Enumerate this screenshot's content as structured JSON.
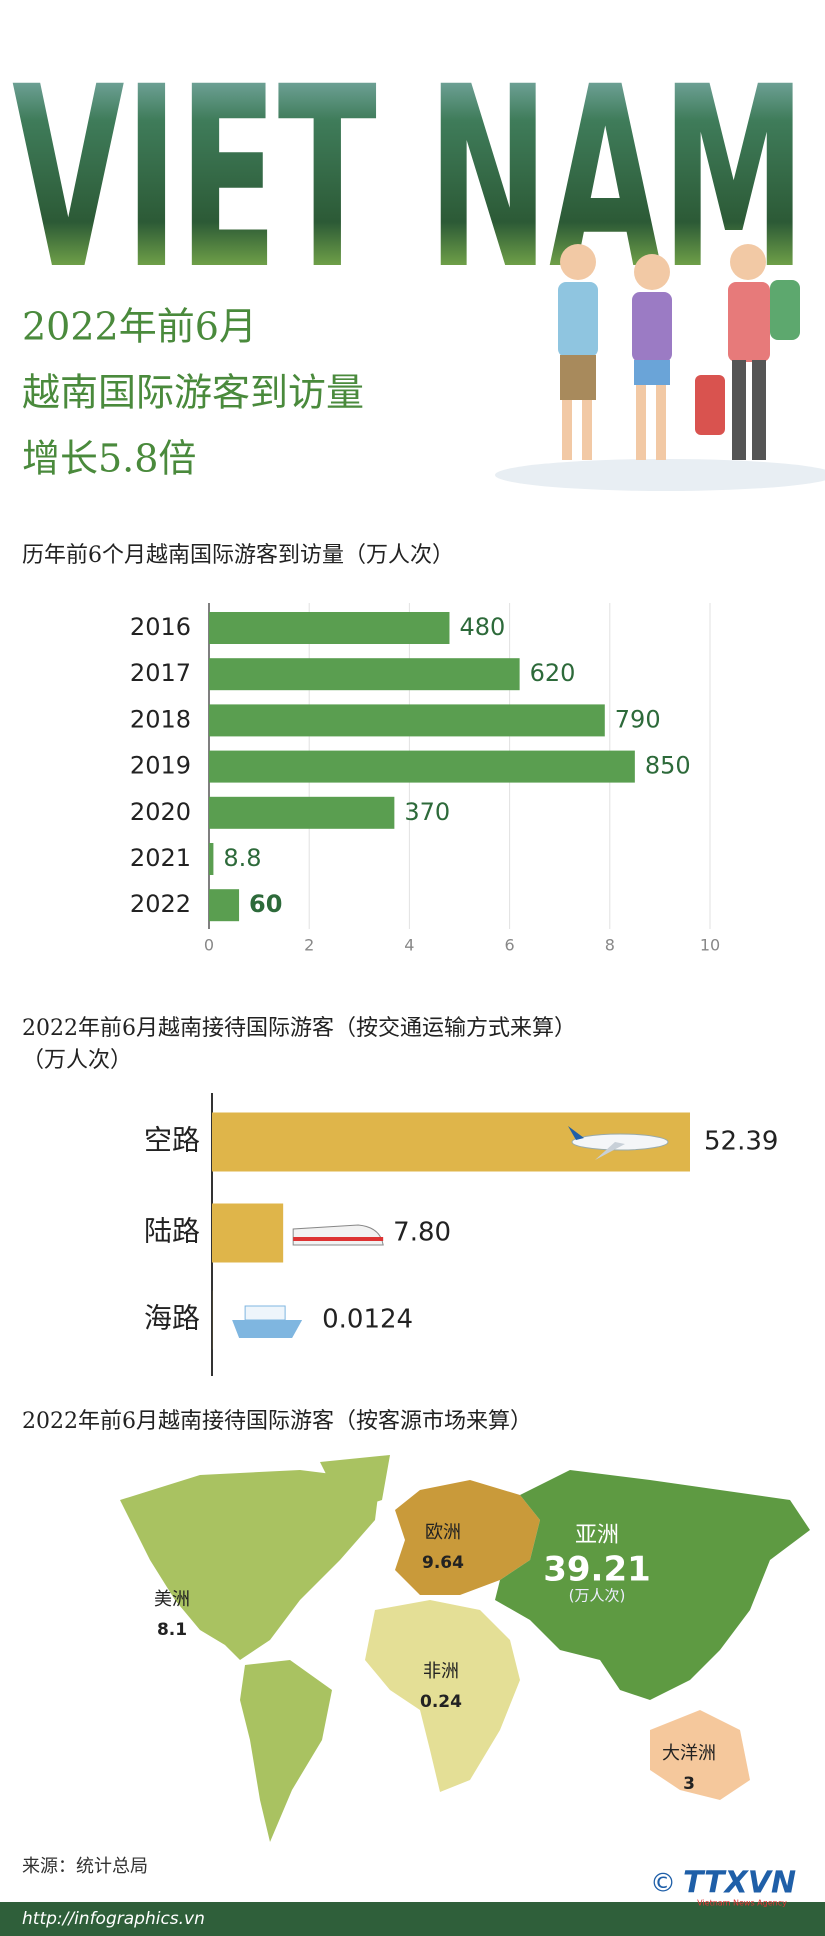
{
  "header": {
    "banner": "VIET NAM",
    "title_lines": [
      "2022年前6月",
      "越南国际游客到访量",
      "增长5.8倍"
    ]
  },
  "chart_data": [
    {
      "type": "bar",
      "orientation": "horizontal",
      "title": "历年前6个月越南国际游客到访量（万人次）",
      "categories": [
        "2016",
        "2017",
        "2018",
        "2019",
        "2020",
        "2021",
        "2022"
      ],
      "values": [
        4.8,
        6.2,
        7.9,
        8.5,
        3.7,
        0.088,
        0.6
      ],
      "value_labels": [
        "480",
        "620",
        "790",
        "850",
        "370",
        "8.8",
        "60"
      ],
      "color": "#5a9e50",
      "xlim": [
        0,
        10
      ],
      "xticks": [
        0,
        2,
        4,
        6,
        8,
        10
      ],
      "grid": true
    },
    {
      "type": "bar",
      "orientation": "horizontal",
      "title": "2022年前6月越南接待国际游客（按交通运输方式来算）",
      "subtitle": "（万人次）",
      "categories": [
        "空路",
        "陆路",
        "海路"
      ],
      "values": [
        52.39,
        7.8,
        0.0124
      ],
      "value_labels": [
        "52.39",
        "7.80",
        "0.0124"
      ],
      "color": "#dfb54a"
    },
    {
      "type": "map",
      "title": "2022年前6月越南接待国际游客（按客源市场来算）",
      "categories": [
        "美洲",
        "欧洲",
        "亚洲",
        "非洲",
        "大洋洲"
      ],
      "values": [
        8.1,
        9.64,
        39.21,
        0.24,
        3
      ],
      "colors": [
        "#a9c261",
        "#c99a3a",
        "#5e9a42",
        "#e4df96",
        "#f5c89c"
      ],
      "unit_label": "(万人次)"
    }
  ],
  "footer": {
    "source": "来源：统计总局",
    "url": "http://infographics.vn",
    "copyright": "©",
    "logo": "TTXVN",
    "logo_sub": "Vietnam News Agency"
  }
}
